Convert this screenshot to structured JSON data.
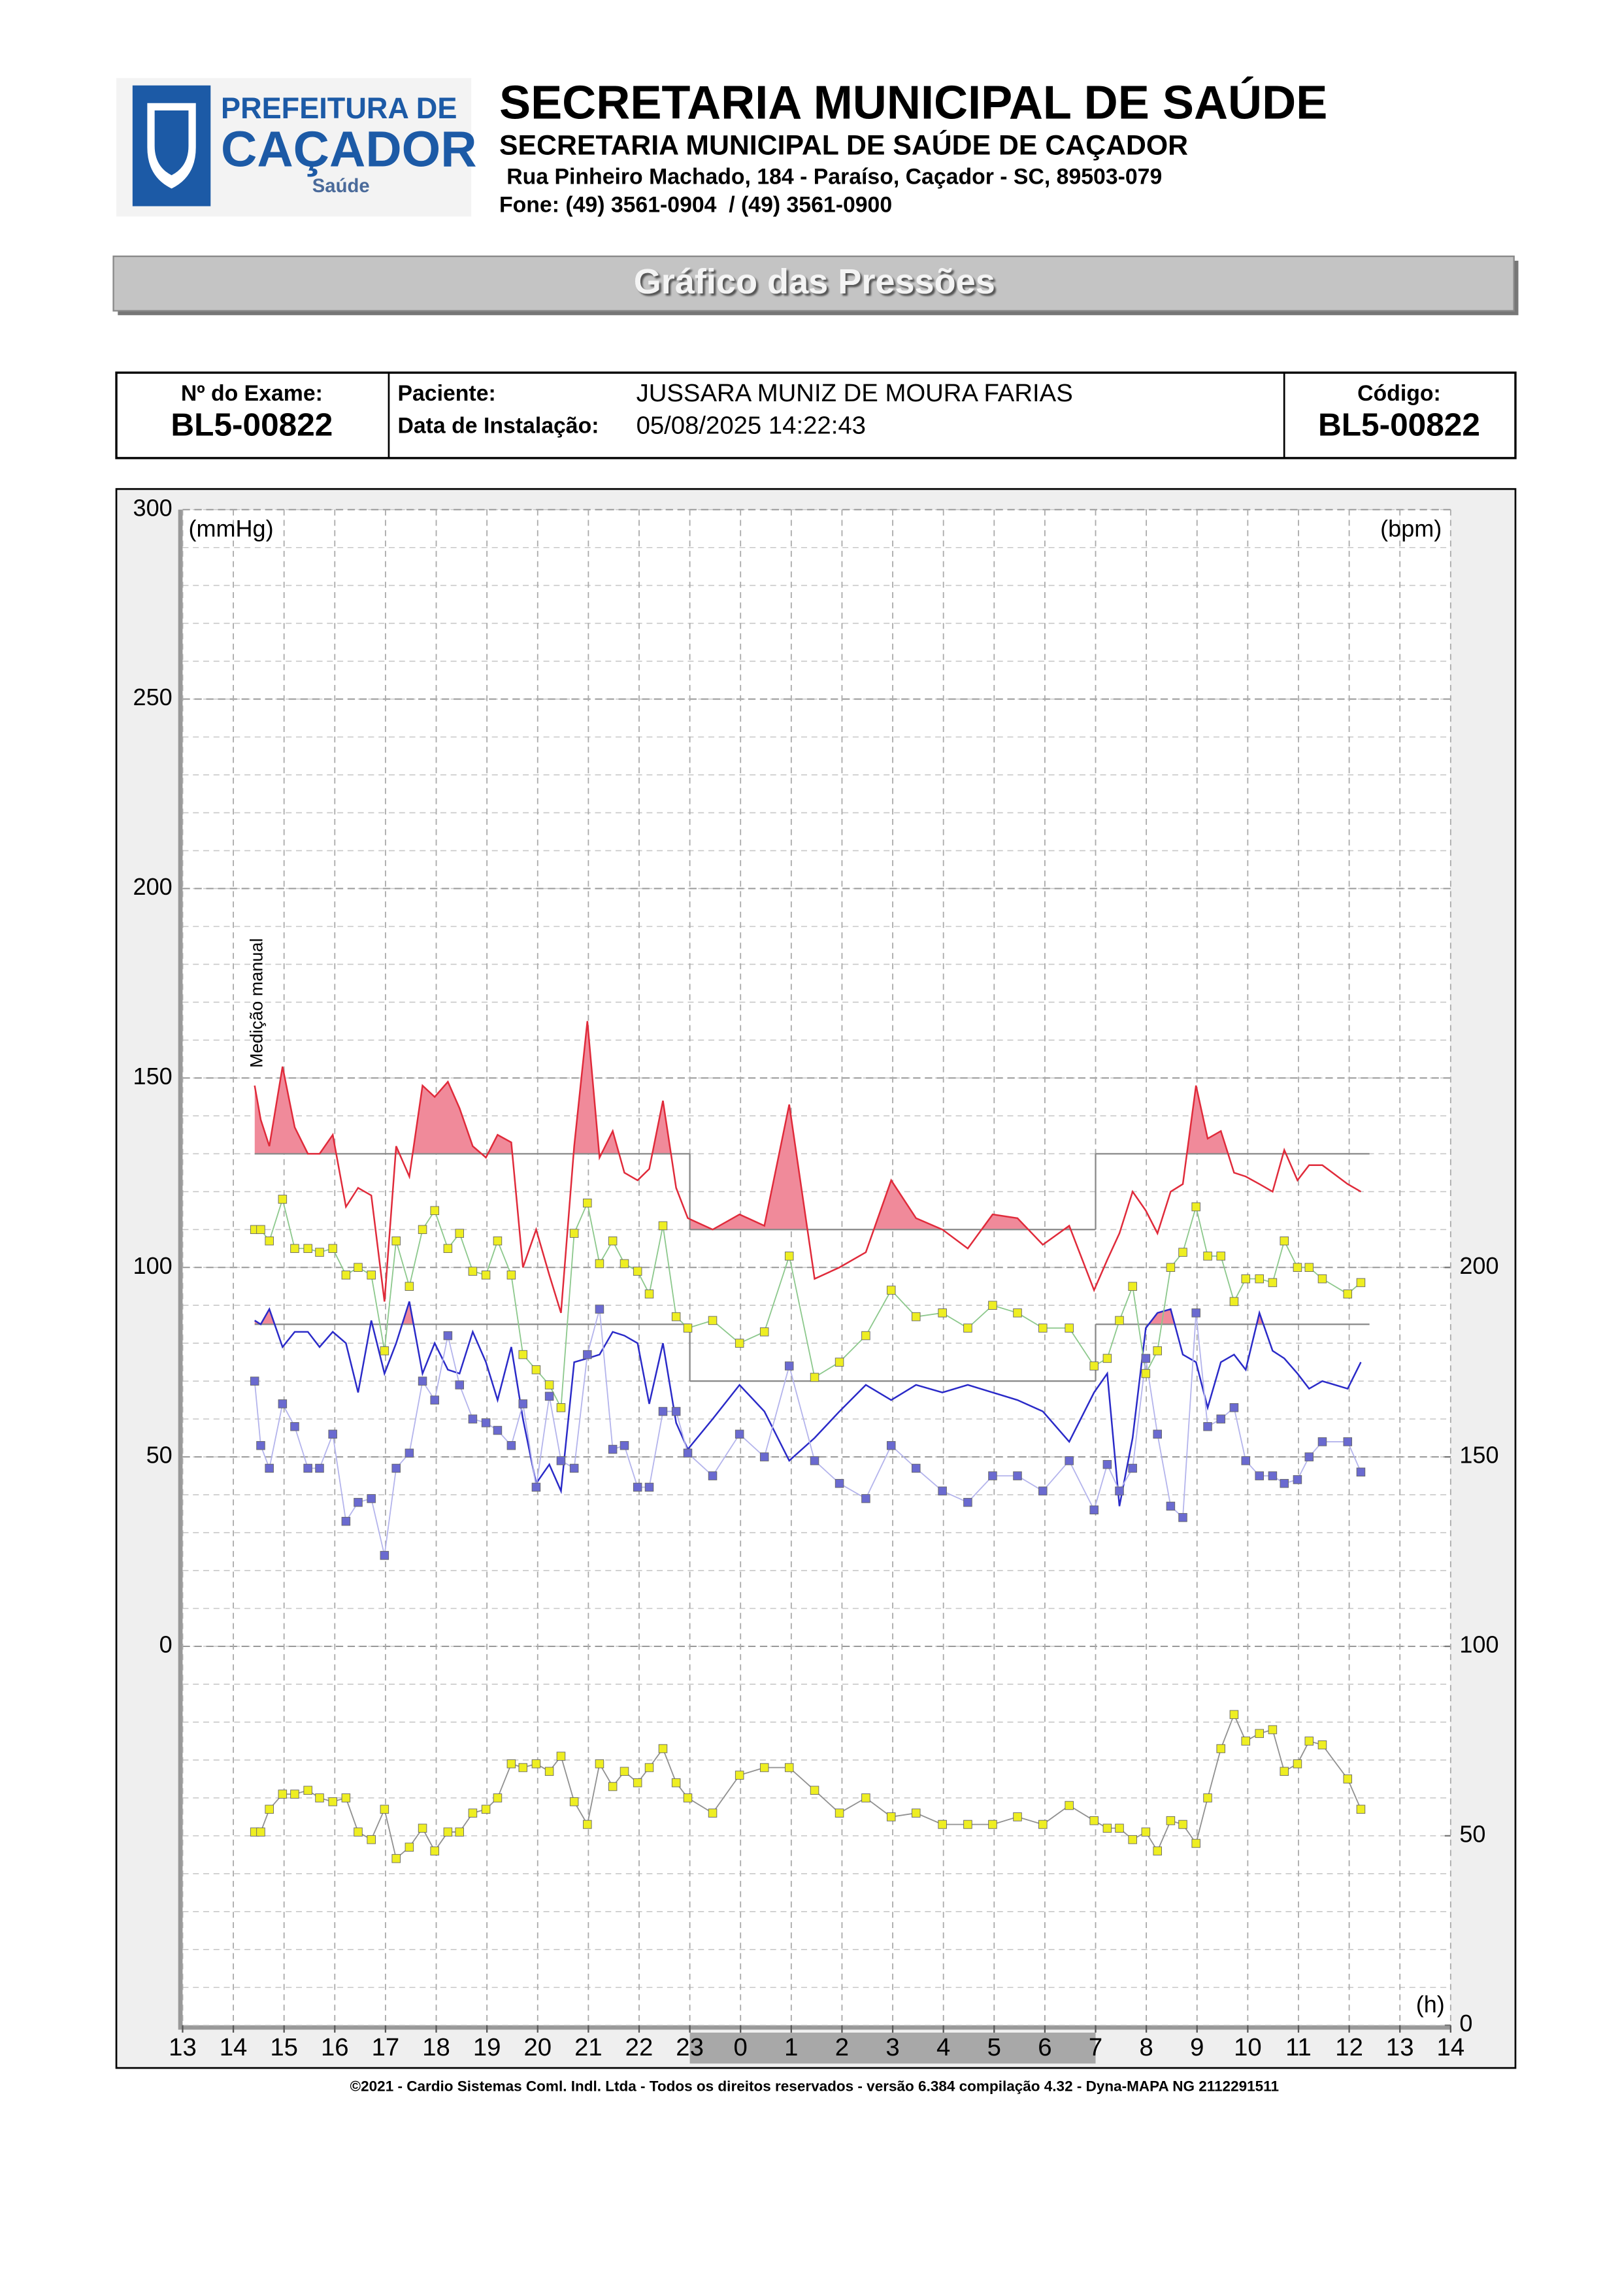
{
  "header": {
    "logo": {
      "line1": "PREFEITURA DE",
      "line2": "CAÇADOR",
      "line3": "Saúde"
    },
    "title": "SECRETARIA MUNICIPAL DE SAÚDE",
    "subtitle": "SECRETARIA MUNICIPAL DE SAÚDE DE CAÇADOR",
    "address": "Rua Pinheiro Machado, 184 - Paraíso, Caçador - SC, 89503-079",
    "phone": "Fone: (49) 3561-0904  / (49) 3561-0900"
  },
  "banner": "Gráfico das Pressões",
  "exam": {
    "exam_label": "Nº do Exame:",
    "exam_number": "BL5-00822",
    "patient_label": "Paciente:",
    "patient": "JUSSARA MUNIZ DE MOURA FARIAS",
    "date_label": "Data de Instalação:",
    "date": "05/08/2025 14:22:43",
    "code_label": "Código:",
    "code": "BL5-00822"
  },
  "chart_data": {
    "type": "line",
    "y_label": "(mmHg)",
    "y2_label": "(bpm)",
    "x_label": "(h)",
    "annotation": "Medição manual",
    "xlim": [
      13,
      38
    ],
    "xticks": [
      13,
      14,
      15,
      16,
      17,
      18,
      19,
      20,
      21,
      22,
      23,
      {
        "value": 24,
        "label": "0"
      },
      {
        "value": 25,
        "label": "1"
      },
      {
        "value": 26,
        "label": "2"
      },
      {
        "value": 27,
        "label": "3"
      },
      {
        "value": 28,
        "label": "4"
      },
      {
        "value": 29,
        "label": "5"
      },
      {
        "value": 30,
        "label": "6"
      },
      {
        "value": 31,
        "label": "7"
      },
      {
        "value": 32,
        "label": "8"
      },
      {
        "value": 33,
        "label": "9"
      },
      {
        "value": 34,
        "label": "10"
      },
      {
        "value": 35,
        "label": "11"
      },
      {
        "value": 36,
        "label": "12"
      },
      {
        "value": 37,
        "label": "13"
      },
      {
        "value": 38,
        "label": "14"
      }
    ],
    "ylim": [
      -100,
      300
    ],
    "yticks": [
      0,
      50,
      100,
      150,
      200,
      250,
      300
    ],
    "y2lim": [
      0,
      400
    ],
    "y2ticks": [
      0,
      50,
      100,
      150,
      200
    ],
    "grid": true,
    "sleep_period": [
      23,
      31
    ],
    "limits": [
      {
        "x": [
          14.42,
          23
        ],
        "systolic": 130,
        "diastolic": 85
      },
      {
        "x": [
          23,
          31
        ],
        "systolic": 110,
        "diastolic": 70
      },
      {
        "x": [
          31,
          36.4
        ],
        "systolic": 130,
        "diastolic": 85
      }
    ],
    "x": [
      14.42,
      14.54,
      14.71,
      14.97,
      15.21,
      15.47,
      15.7,
      15.96,
      16.22,
      16.46,
      16.72,
      16.98,
      17.21,
      17.47,
      17.73,
      17.97,
      18.23,
      18.46,
      18.72,
      18.98,
      19.21,
      19.48,
      19.71,
      19.97,
      20.23,
      20.46,
      20.72,
      20.98,
      21.22,
      21.48,
      21.71,
      21.97,
      22.2,
      22.47,
      22.73,
      22.96,
      23.45,
      23.98,
      24.47,
      24.96,
      25.46,
      25.95,
      26.47,
      26.97,
      27.46,
      27.98,
      28.48,
      28.97,
      29.46,
      29.96,
      30.48,
      30.97,
      31.23,
      31.47,
      31.73,
      31.99,
      32.22,
      32.48,
      32.72,
      32.98,
      33.21,
      33.47,
      33.73,
      33.96,
      34.23,
      34.49,
      34.72,
      34.98,
      35.21,
      35.47,
      35.97,
      36.23
    ],
    "series": [
      {
        "color": "#e02a3a",
        "fill_color": "#f08a9a",
        "limit": "systolic",
        "marker": false,
        "values": [
          148,
          139,
          132,
          153,
          137,
          130,
          130,
          135,
          116,
          121,
          119,
          91,
          132,
          124,
          148,
          145,
          149,
          142,
          132,
          129,
          135,
          133,
          100,
          110,
          98,
          88,
          132,
          165,
          129,
          136,
          125,
          123,
          126,
          144,
          121,
          113,
          110,
          114,
          111,
          143,
          97,
          100,
          104,
          123,
          113,
          110,
          105,
          114,
          113,
          106,
          111,
          94,
          102,
          109,
          120,
          115,
          109,
          120,
          122,
          148,
          134,
          136,
          125,
          124,
          122,
          120,
          131,
          123,
          127,
          127,
          122,
          120
        ]
      },
      {
        "color": "#2a2ac8",
        "fill_color": "#f08a9a",
        "limit": "diastolic",
        "marker": false,
        "values": [
          86,
          85,
          89,
          79,
          83,
          83,
          79,
          83,
          80,
          67,
          86,
          72,
          80,
          91,
          72,
          80,
          73,
          72,
          83,
          75,
          65,
          79,
          60,
          43,
          48,
          41,
          75,
          76,
          77,
          83,
          82,
          80,
          64,
          80,
          59,
          52,
          60,
          69,
          62,
          49,
          55,
          62,
          69,
          65,
          69,
          67,
          69,
          67,
          65,
          62,
          54,
          67,
          72,
          37,
          55,
          84,
          88,
          89,
          77,
          75,
          63,
          75,
          77,
          73,
          88,
          78,
          76,
          72,
          68,
          70,
          68,
          75
        ]
      },
      {
        "color": "#eeee22",
        "line_color": "#8cc88c",
        "marker": true,
        "values": [
          110,
          110,
          107,
          118,
          105,
          105,
          104,
          105,
          98,
          100,
          98,
          78,
          107,
          95,
          110,
          115,
          105,
          109,
          99,
          98,
          107,
          98,
          77,
          73,
          69,
          63,
          109,
          117,
          101,
          107,
          101,
          99,
          93,
          111,
          87,
          84,
          86,
          80,
          83,
          103,
          71,
          75,
          82,
          94,
          87,
          88,
          84,
          90,
          88,
          84,
          84,
          74,
          76,
          86,
          95,
          72,
          78,
          100,
          104,
          116,
          103,
          103,
          91,
          97,
          97,
          96,
          107,
          100,
          100,
          97,
          93,
          96
        ]
      },
      {
        "color": "#6a6ad0",
        "line_color": "#b4b4ec",
        "marker": true,
        "values": [
          70,
          53,
          47,
          64,
          58,
          47,
          47,
          56,
          33,
          38,
          39,
          24,
          47,
          51,
          70,
          65,
          82,
          69,
          60,
          59,
          57,
          53,
          64,
          42,
          66,
          49,
          47,
          77,
          89,
          52,
          53,
          42,
          42,
          62,
          62,
          51,
          45,
          56,
          50,
          74,
          49,
          43,
          39,
          53,
          47,
          41,
          38,
          45,
          45,
          41,
          49,
          36,
          48,
          41,
          47,
          76,
          56,
          37,
          34,
          88,
          58,
          60,
          63,
          49,
          45,
          45,
          43,
          44,
          50,
          54,
          54,
          46
        ]
      },
      {
        "color": "#eeee22",
        "line_color": "#909090",
        "marker": true,
        "axis": "y2",
        "values": [
          51,
          51,
          57,
          61,
          61,
          62,
          60,
          59,
          60,
          51,
          49,
          57,
          44,
          47,
          52,
          46,
          51,
          51,
          56,
          57,
          60,
          69,
          68,
          69,
          67,
          71,
          59,
          53,
          69,
          63,
          67,
          64,
          68,
          73,
          64,
          60,
          56,
          66,
          68,
          68,
          62,
          56,
          60,
          55,
          56,
          53,
          53,
          53,
          55,
          53,
          58,
          54,
          52,
          52,
          49,
          51,
          46,
          54,
          53,
          48,
          60,
          73,
          82,
          75,
          77,
          78,
          67,
          69,
          75,
          74,
          65,
          57
        ]
      }
    ]
  },
  "footer": "©2021 - Cardio Sistemas Coml. Indl. Ltda - Todos os direitos reservados - versão 6.384 compilação 4.32 - Dyna-MAPA NG 2112291511"
}
